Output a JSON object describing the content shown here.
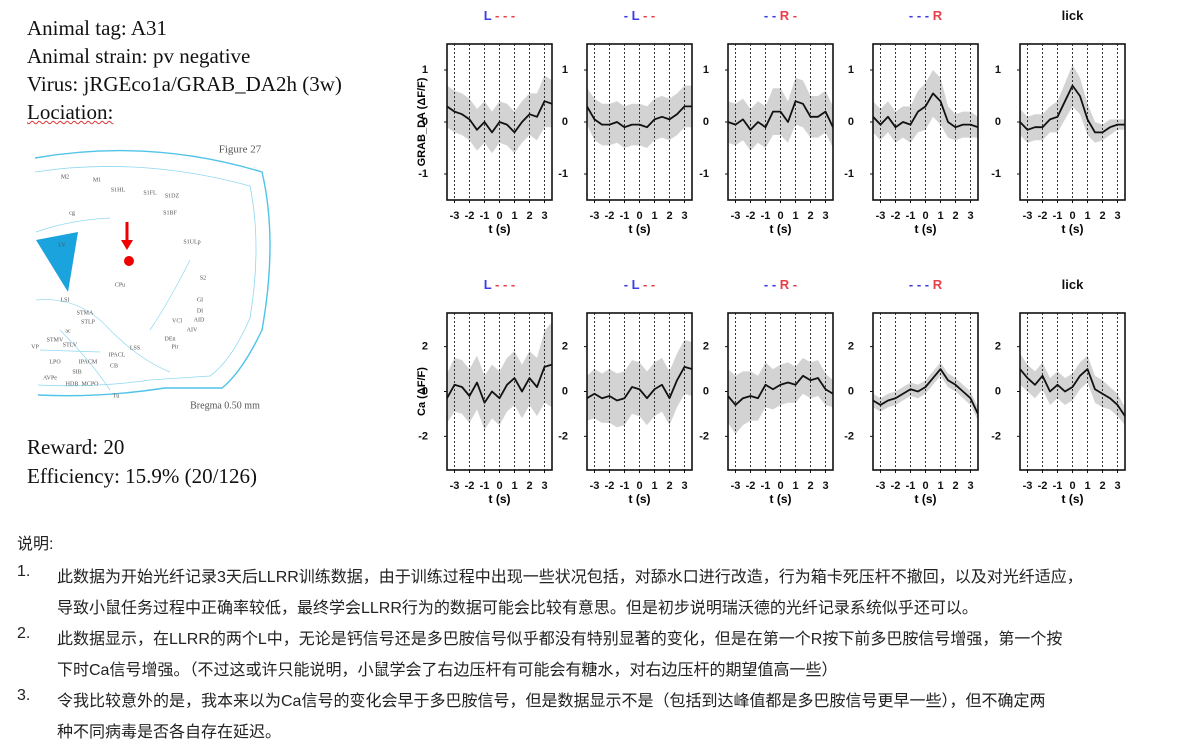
{
  "info": {
    "lines": [
      "Animal tag: A31",
      "Animal strain: pv negative",
      "Virus: jRGEco1a/GRAB_DA2h (3w)",
      "Lociation:"
    ],
    "results": [
      "Reward: 20",
      "Efficiency: 15.9% (20/126)"
    ]
  },
  "figure": {
    "title": "Figure 27",
    "bregma": "Bregma 0.50 mm",
    "labels": [
      "M2",
      "M1",
      "S1HL",
      "S1FL",
      "S1DZ",
      "S1BF",
      "S1ULp",
      "S2",
      "CPu",
      "LV",
      "GI",
      "DI",
      "AID",
      "AIV",
      "VCl",
      "Pir",
      "DEn",
      "LSI",
      "STMA",
      "STLP",
      "MCPO",
      "HDB",
      "SIB",
      "IPACM",
      "IPACL",
      "LSS",
      "CB",
      "Tu",
      "LPO",
      "AVPe",
      "VP",
      "STMV",
      "STLV",
      "ac",
      "cg"
    ]
  },
  "chart_data": [
    {
      "type": "line",
      "title": [
        {
          "text": "L",
          "color": "#3c3ce8"
        },
        {
          "text": " - - -",
          "color": "#e8404a"
        }
      ],
      "ylabel": "GRAB_DA (ΔF/F)",
      "xlabel": "t (s)",
      "x": [
        -3.5,
        -3,
        -2.5,
        -2,
        -1.5,
        -1,
        -0.5,
        0,
        0.5,
        1,
        1.5,
        2,
        2.5,
        3,
        3.5
      ],
      "values": [
        0.3,
        0.2,
        0.15,
        0.05,
        -0.15,
        0,
        -0.2,
        0,
        -0.05,
        -0.2,
        0,
        0.15,
        0.1,
        0.4,
        0.35
      ],
      "errors": [
        0.4,
        0.4,
        0.4,
        0.4,
        0.4,
        0.4,
        0.4,
        0.4,
        0.4,
        0.4,
        0.4,
        0.4,
        0.45,
        0.5,
        0.45
      ],
      "color": "#111111",
      "band_color": "#d3d3d3",
      "xlim": [
        -3.5,
        3.5
      ],
      "ylim": [
        -1.5,
        1.5
      ],
      "xticks": [
        -3,
        -2,
        -1,
        0,
        1,
        2,
        3
      ],
      "yticks": [
        -1,
        0,
        1
      ]
    },
    {
      "type": "line",
      "title": [
        {
          "text": "- L",
          "color": "#3c3ce8"
        },
        {
          "text": " - -",
          "color": "#e8404a"
        }
      ],
      "xlabel": "t (s)",
      "x": [
        -3.5,
        -3,
        -2.5,
        -2,
        -1.5,
        -1,
        -0.5,
        0,
        0.5,
        1,
        1.5,
        2,
        2.5,
        3,
        3.5
      ],
      "values": [
        0.3,
        0.05,
        -0.05,
        -0.05,
        0,
        -0.1,
        -0.05,
        -0.05,
        -0.1,
        0.05,
        0.1,
        0.05,
        0.15,
        0.3,
        0.3
      ],
      "errors": [
        0.35,
        0.4,
        0.4,
        0.4,
        0.4,
        0.4,
        0.4,
        0.4,
        0.4,
        0.4,
        0.4,
        0.4,
        0.4,
        0.4,
        0.4
      ],
      "color": "#111111",
      "band_color": "#d3d3d3",
      "xlim": [
        -3.5,
        3.5
      ],
      "ylim": [
        -1.5,
        1.5
      ],
      "xticks": [
        -3,
        -2,
        -1,
        0,
        1,
        2,
        3
      ],
      "yticks": [
        -1,
        0,
        1
      ]
    },
    {
      "type": "line",
      "title": [
        {
          "text": "- - ",
          "color": "#3c3ce8"
        },
        {
          "text": "R -",
          "color": "#e8404a"
        }
      ],
      "xlabel": "t (s)",
      "x": [
        -3.5,
        -3,
        -2.5,
        -2,
        -1.5,
        -1,
        -0.5,
        0,
        0.5,
        1,
        1.5,
        2,
        2.5,
        3,
        3.5
      ],
      "values": [
        0,
        -0.05,
        0.05,
        -0.15,
        0,
        -0.1,
        0.2,
        0.2,
        0,
        0.4,
        0.35,
        0.1,
        0.1,
        0.2,
        -0.1
      ],
      "errors": [
        0.4,
        0.4,
        0.4,
        0.4,
        0.4,
        0.4,
        0.45,
        0.45,
        0.4,
        0.45,
        0.45,
        0.4,
        0.4,
        0.4,
        0.4
      ],
      "color": "#111111",
      "band_color": "#d3d3d3",
      "xlim": [
        -3.5,
        3.5
      ],
      "ylim": [
        -1.5,
        1.5
      ],
      "xticks": [
        -3,
        -2,
        -1,
        0,
        1,
        2,
        3
      ],
      "yticks": [
        -1,
        0,
        1
      ]
    },
    {
      "type": "line",
      "title": [
        {
          "text": "- - - ",
          "color": "#3c3ce8"
        },
        {
          "text": "R",
          "color": "#e8404a"
        }
      ],
      "xlabel": "t (s)",
      "x": [
        -3.5,
        -3,
        -2.5,
        -2,
        -1.5,
        -1,
        -0.5,
        0,
        0.5,
        1,
        1.5,
        2,
        2.5,
        3,
        3.5
      ],
      "values": [
        0.1,
        -0.05,
        0.1,
        -0.1,
        0,
        -0.05,
        0.2,
        0.3,
        0.55,
        0.4,
        0,
        -0.1,
        -0.05,
        -0.05,
        -0.1
      ],
      "errors": [
        0.3,
        0.3,
        0.3,
        0.3,
        0.3,
        0.35,
        0.4,
        0.45,
        0.45,
        0.45,
        0.3,
        0.25,
        0.25,
        0.25,
        0.2
      ],
      "color": "#111111",
      "band_color": "#d3d3d3",
      "xlim": [
        -3.5,
        3.5
      ],
      "ylim": [
        -1.5,
        1.5
      ],
      "xticks": [
        -3,
        -2,
        -1,
        0,
        1,
        2,
        3
      ],
      "yticks": [
        -1,
        0,
        1
      ]
    },
    {
      "type": "line",
      "title": [
        {
          "text": "lick",
          "color": "#111111"
        }
      ],
      "xlabel": "t (s)",
      "x": [
        -3.5,
        -3,
        -2.5,
        -2,
        -1.5,
        -1,
        -0.5,
        0,
        0.5,
        1,
        1.5,
        2,
        2.5,
        3,
        3.5
      ],
      "values": [
        0,
        -0.15,
        -0.1,
        -0.1,
        0.05,
        0.1,
        0.4,
        0.7,
        0.5,
        0.05,
        -0.2,
        -0.2,
        -0.1,
        -0.05,
        -0.05
      ],
      "errors": [
        0.25,
        0.25,
        0.25,
        0.25,
        0.25,
        0.3,
        0.35,
        0.4,
        0.35,
        0.3,
        0.2,
        0.15,
        0.15,
        0.1,
        0.1
      ],
      "color": "#111111",
      "band_color": "#d3d3d3",
      "xlim": [
        -3.5,
        3.5
      ],
      "ylim": [
        -1.5,
        1.5
      ],
      "xticks": [
        -3,
        -2,
        -1,
        0,
        1,
        2,
        3
      ],
      "yticks": [
        -1,
        0,
        1
      ]
    },
    {
      "type": "line",
      "title": [
        {
          "text": "L",
          "color": "#3c3ce8"
        },
        {
          "text": " - - -",
          "color": "#e8404a"
        }
      ],
      "ylabel": "Ca (ΔF/F)",
      "xlabel": "t (s)",
      "x": [
        -3.5,
        -3,
        -2.5,
        -2,
        -1.5,
        -1,
        -0.5,
        0,
        0.5,
        1,
        1.5,
        2,
        2.5,
        3,
        3.5
      ],
      "values": [
        -0.3,
        0.3,
        0.2,
        -0.2,
        0.4,
        -0.5,
        0,
        -0.3,
        0.3,
        0.6,
        0,
        0.6,
        0.2,
        1.1,
        1.2
      ],
      "errors": [
        1.1,
        1.2,
        1.2,
        1.2,
        1.2,
        1.2,
        1.2,
        1.2,
        1.2,
        1.2,
        1.2,
        1.2,
        1.3,
        1.6,
        1.9
      ],
      "color": "#111111",
      "band_color": "#d3d3d3",
      "xlim": [
        -3.5,
        3.5
      ],
      "ylim": [
        -3.5,
        3.5
      ],
      "xticks": [
        -3,
        -2,
        -1,
        0,
        1,
        2,
        3
      ],
      "yticks": [
        -2,
        0,
        2
      ]
    },
    {
      "type": "line",
      "title": [
        {
          "text": "- L",
          "color": "#3c3ce8"
        },
        {
          "text": " - -",
          "color": "#e8404a"
        }
      ],
      "xlabel": "t (s)",
      "x": [
        -3.5,
        -3,
        -2.5,
        -2,
        -1.5,
        -1,
        -0.5,
        0,
        0.5,
        1,
        1.5,
        2,
        2.5,
        3,
        3.5
      ],
      "values": [
        -0.3,
        -0.1,
        -0.3,
        -0.2,
        -0.4,
        -0.3,
        0.2,
        0.1,
        -0.3,
        0.1,
        0.3,
        -0.3,
        0.5,
        1.1,
        1
      ],
      "errors": [
        1,
        1.1,
        1.1,
        1.2,
        1.2,
        1.2,
        1.2,
        1.2,
        1.2,
        1.2,
        1.2,
        1.2,
        1.2,
        1.2,
        1.2
      ],
      "color": "#111111",
      "band_color": "#d3d3d3",
      "xlim": [
        -3.5,
        3.5
      ],
      "ylim": [
        -3.5,
        3.5
      ],
      "xticks": [
        -3,
        -2,
        -1,
        0,
        1,
        2,
        3
      ],
      "yticks": [
        -2,
        0,
        2
      ]
    },
    {
      "type": "line",
      "title": [
        {
          "text": "- - ",
          "color": "#3c3ce8"
        },
        {
          "text": "R -",
          "color": "#e8404a"
        }
      ],
      "xlabel": "t (s)",
      "x": [
        -3.5,
        -3,
        -2.5,
        -2,
        -1.5,
        -1,
        -0.5,
        0,
        0.5,
        1,
        1.5,
        2,
        2.5,
        3,
        3.5
      ],
      "values": [
        -0.2,
        -0.6,
        -0.3,
        -0.2,
        -0.3,
        0.3,
        0.1,
        0.3,
        0.4,
        0.3,
        0.7,
        0.5,
        0.6,
        0.1,
        -0.1
      ],
      "errors": [
        1.2,
        1.3,
        1.2,
        1.1,
        1,
        1,
        0.9,
        0.9,
        0.9,
        0.8,
        0.8,
        0.8,
        0.8,
        0.7,
        0.6
      ],
      "color": "#111111",
      "band_color": "#d3d3d3",
      "xlim": [
        -3.5,
        3.5
      ],
      "ylim": [
        -3.5,
        3.5
      ],
      "xticks": [
        -3,
        -2,
        -1,
        0,
        1,
        2,
        3
      ],
      "yticks": [
        -2,
        0,
        2
      ]
    },
    {
      "type": "line",
      "title": [
        {
          "text": "- - - ",
          "color": "#3c3ce8"
        },
        {
          "text": "R",
          "color": "#e8404a"
        }
      ],
      "xlabel": "t (s)",
      "x": [
        -3.5,
        -3,
        -2.5,
        -2,
        -1.5,
        -1,
        -0.5,
        0,
        0.5,
        1,
        1.5,
        2,
        2.5,
        3,
        3.5
      ],
      "values": [
        -0.4,
        -0.6,
        -0.4,
        -0.3,
        -0.1,
        0.1,
        0,
        0.2,
        0.6,
        1,
        0.5,
        0.3,
        0,
        -0.3,
        -1
      ],
      "errors": [
        0.3,
        0.3,
        0.3,
        0.3,
        0.3,
        0.3,
        0.3,
        0.3,
        0.3,
        0.3,
        0.3,
        0.3,
        0.3,
        0.3,
        0.3
      ],
      "color": "#111111",
      "band_color": "#d3d3d3",
      "xlim": [
        -3.5,
        3.5
      ],
      "ylim": [
        -3.5,
        3.5
      ],
      "xticks": [
        -3,
        -2,
        -1,
        0,
        1,
        2,
        3
      ],
      "yticks": [
        -2,
        0,
        2
      ]
    },
    {
      "type": "line",
      "title": [
        {
          "text": "lick",
          "color": "#111111"
        }
      ],
      "xlabel": "t (s)",
      "x": [
        -3.5,
        -3,
        -2.5,
        -2,
        -1.5,
        -1,
        -0.5,
        0,
        0.5,
        1,
        1.5,
        2,
        2.5,
        3,
        3.5
      ],
      "values": [
        1,
        0.6,
        0.3,
        0.7,
        0,
        0.3,
        0,
        0.2,
        0.7,
        1,
        0.1,
        -0.1,
        -0.3,
        -0.6,
        -1.1
      ],
      "errors": [
        0.7,
        0.6,
        0.6,
        0.6,
        0.6,
        0.6,
        0.6,
        0.6,
        0.6,
        0.6,
        0.6,
        0.6,
        0.5,
        0.5,
        0.4
      ],
      "color": "#111111",
      "band_color": "#d3d3d3",
      "xlim": [
        -3.5,
        3.5
      ],
      "ylim": [
        -3.5,
        3.5
      ],
      "xticks": [
        -3,
        -2,
        -1,
        0,
        1,
        2,
        3
      ],
      "yticks": [
        -2,
        0,
        2
      ]
    }
  ],
  "notes": {
    "heading": "说明:",
    "items": [
      {
        "number": "1.",
        "lines": [
          "此数据为开始光纤记录3天后LLRR训练数据，由于训练过程中出现一些状况包括，对舔水口进行改造，行为箱卡死压杆不撤回，以及对光纤适应，",
          "导致小鼠任务过程中正确率较低，最终学会LLRR行为的数据可能会比较有意思。但是初步说明瑞沃德的光纤记录系统似乎还可以。"
        ]
      },
      {
        "number": "2.",
        "lines": [
          "此数据显示，在LLRR的两个L中，无论是钙信号还是多巴胺信号似乎都没有特别显著的变化，但是在第一个R按下前多巴胺信号增强，第一个按",
          "下时Ca信号增强。（不过这或许只能说明，小鼠学会了右边压杆有可能会有糖水，对右边压杆的期望值高一些）"
        ]
      },
      {
        "number": "3.",
        "lines": [
          "令我比较意外的是，我本来以为Ca信号的变化会早于多巴胺信号，但是数据显示不是（包括到达峰值都是多巴胺信号更早一些），但不确定两",
          "种不同病毒是否各自存在延迟。"
        ]
      }
    ]
  }
}
